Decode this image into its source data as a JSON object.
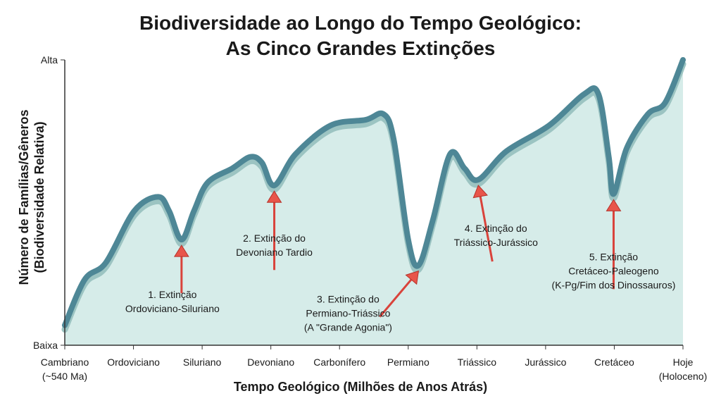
{
  "chart_data": {
    "type": "area",
    "title": "Biodiversidade ao Longo do Tempo Geológico:\nAs Cinco Grandes Extinções",
    "x_label": "Tempo Geológico (Milhões de Anos Atrás)",
    "y_label": "Número de Famílias/Gêneros\n(Biodiversidade Relativa)",
    "x": [
      0,
      0.29,
      0.6,
      1.01,
      1.36,
      1.52,
      1.7,
      1.88,
      2.08,
      2.44,
      2.7,
      2.87,
      3.05,
      3.36,
      3.87,
      4.38,
      4.64,
      4.79,
      5.0,
      5.15,
      5.36,
      5.61,
      5.82,
      6.02,
      6.43,
      7.05,
      7.56,
      7.77,
      7.92,
      7.99,
      8.18,
      8.49,
      8.74,
      9.0
    ],
    "values": [
      7,
      23,
      29,
      47,
      52,
      47,
      37,
      47,
      57,
      62,
      66,
      64,
      56,
      67,
      77,
      79,
      81,
      72,
      37,
      28,
      44,
      67,
      62,
      58,
      68,
      77,
      88,
      88,
      66,
      53,
      69,
      81,
      85,
      100
    ],
    "color": "#4e8796",
    "fill": "#d6ece9",
    "xlim": [
      0,
      9
    ],
    "ylim": [
      0,
      100
    ],
    "xticks": [
      {
        "value": 0,
        "label": "Cambriano\n(~540 Ma)"
      },
      {
        "value": 1,
        "label": "Ordoviciano"
      },
      {
        "value": 2,
        "label": "Siluriano"
      },
      {
        "value": 3,
        "label": "Devoniano"
      },
      {
        "value": 4,
        "label": "Carbonífero"
      },
      {
        "value": 5,
        "label": "Permiano"
      },
      {
        "value": 6,
        "label": "Triássico"
      },
      {
        "value": 7,
        "label": "Jurássico"
      },
      {
        "value": 8,
        "label": "Cretáceo"
      },
      {
        "value": 9,
        "label": "Hoje\n(Holoceno)"
      }
    ],
    "yticks": [
      {
        "value": 0,
        "label": "Baixa"
      },
      {
        "value": 100,
        "label": "Alta"
      }
    ],
    "annotations": [
      {
        "text": "1. Extinção\nOrdoviciano-Siluriano",
        "x": 1.7,
        "y": 37
      },
      {
        "text": "2. Extinção do\nDevoniano Tardio",
        "x": 3.05,
        "y": 56
      },
      {
        "text": "3. Extinção do\nPermiano-Triássico\n(A \"Grande Agonia\")",
        "x": 5.15,
        "y": 28
      },
      {
        "text": "4. Extinção do\nTriássico-Jurássico",
        "x": 6.02,
        "y": 58
      },
      {
        "text": "5. Extinção\nCretáceo-Paleogeno\n(K-Pg/Fim dos Dinossauros)",
        "x": 7.99,
        "y": 53
      }
    ]
  }
}
